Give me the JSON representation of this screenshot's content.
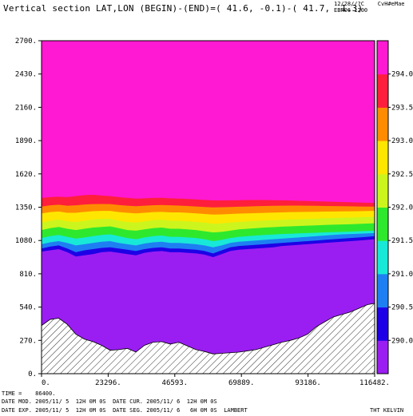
{
  "header": {
    "title": "Vertical section LAT,LON (BEGIN)-(END)=( 41.6, -0.1)-( 41.7,  1.3)",
    "stamp_line1": "12/28//?C",
    "stamp_line2": "EBR06 1200",
    "stamp_user": "CvH#eMae"
  },
  "footer": {
    "time_label": "TIME =",
    "time_value": "86400.",
    "date_mod": "DATE MOD. 2005/11/ 5  12H 0M 0S",
    "date_cur": "DATE CUR. 2005/11/ 6  12H 0M 0S",
    "date_exp": "DATE EXP. 2005/11/ 5  12H 0M 0S",
    "date_seg": "DATE SEG. 2005/11/ 6   6H 0M 0S",
    "projection": "LAMBERT",
    "field_label": "THT KELVIN"
  },
  "chart_data": {
    "type": "heatmap",
    "title": "Vertical section LAT,LON (BEGIN)-(END)=( 41.6, -0.1)-( 41.7,  1.3)",
    "xlim": [
      0,
      116482
    ],
    "ylim": [
      0,
      2700
    ],
    "x_ticks": [
      "0.",
      "23296.",
      "46593.",
      "69889.",
      "93186.",
      "116482."
    ],
    "x_tick_values": [
      0,
      23296,
      46593,
      69889,
      93186,
      116482
    ],
    "y_ticks": [
      "0.",
      "270.",
      "540.",
      "810.",
      "1080.",
      "1350.",
      "1620.",
      "1890.",
      "2160.",
      "2430.",
      "2700."
    ],
    "y_tick_values": [
      0,
      270,
      540,
      810,
      1080,
      1350,
      1620,
      1890,
      2160,
      2430,
      2700
    ],
    "colorbar": {
      "labels": [
        "290.0",
        "290.5",
        "291.0",
        "291.5",
        "292.0",
        "292.5",
        "293.0",
        "293.5",
        "294.0"
      ],
      "values": [
        290.0,
        290.5,
        291.0,
        291.5,
        292.0,
        292.5,
        293.0,
        293.5,
        294.0
      ],
      "colors": [
        "#9a1ef2",
        "#1e00e6",
        "#1e7ff2",
        "#18e8d8",
        "#2ee82e",
        "#ccf51e",
        "#ffe600",
        "#ff8c00",
        "#ff1e3c",
        "#ff19d2"
      ]
    },
    "x_profile": [
      0,
      3000,
      6000,
      9000,
      12000,
      15000,
      18000,
      21000,
      24000,
      27000,
      30000,
      33000,
      36000,
      39000,
      42000,
      45000,
      48000,
      51000,
      54000,
      57000,
      60000,
      63000,
      66000,
      69000,
      72000,
      75000,
      78000,
      81000,
      84000,
      87000,
      90000,
      93000,
      96000,
      99000,
      102000,
      105000,
      108000,
      111000,
      114000,
      116482
    ],
    "terrain": [
      390,
      440,
      450,
      400,
      320,
      280,
      260,
      230,
      190,
      195,
      205,
      175,
      230,
      255,
      260,
      240,
      255,
      225,
      195,
      180,
      160,
      165,
      170,
      175,
      185,
      195,
      215,
      235,
      255,
      270,
      290,
      320,
      380,
      420,
      460,
      480,
      500,
      530,
      560,
      570
    ],
    "contours": [
      {
        "value": 290.0,
        "heights": [
          990,
          1000,
          1010,
          985,
          950,
          960,
          970,
          985,
          990,
          980,
          970,
          960,
          980,
          990,
          995,
          985,
          985,
          980,
          975,
          965,
          945,
          970,
          995,
          1005,
          1010,
          1015,
          1020,
          1025,
          1035,
          1040,
          1045,
          1050,
          1055,
          1060,
          1065,
          1070,
          1075,
          1080,
          1085,
          1090
        ]
      },
      {
        "value": 290.5,
        "heights": [
          1015,
          1030,
          1040,
          1015,
          985,
          1000,
          1010,
          1020,
          1025,
          1015,
          1005,
          995,
          1010,
          1020,
          1025,
          1015,
          1015,
          1010,
          1005,
          995,
          975,
          1000,
          1025,
          1035,
          1040,
          1045,
          1050,
          1055,
          1060,
          1065,
          1070,
          1075,
          1080,
          1085,
          1090,
          1095,
          1100,
          1105,
          1110,
          1115
        ]
      },
      {
        "value": 291.0,
        "heights": [
          1050,
          1065,
          1075,
          1060,
          1040,
          1050,
          1060,
          1070,
          1075,
          1060,
          1050,
          1040,
          1055,
          1065,
          1070,
          1060,
          1060,
          1055,
          1050,
          1040,
          1025,
          1040,
          1060,
          1070,
          1075,
          1080,
          1085,
          1090,
          1095,
          1100,
          1105,
          1110,
          1115,
          1120,
          1125,
          1130,
          1132,
          1135,
          1138,
          1140
        ]
      },
      {
        "value": 291.5,
        "heights": [
          1100,
          1115,
          1125,
          1110,
          1095,
          1105,
          1115,
          1125,
          1130,
          1115,
          1100,
          1090,
          1105,
          1115,
          1120,
          1110,
          1110,
          1105,
          1100,
          1090,
          1075,
          1085,
          1100,
          1110,
          1115,
          1120,
          1125,
          1128,
          1132,
          1135,
          1138,
          1140,
          1143,
          1146,
          1148,
          1150,
          1152,
          1155,
          1157,
          1160
        ]
      },
      {
        "value": 292.0,
        "heights": [
          1165,
          1180,
          1190,
          1175,
          1165,
          1175,
          1185,
          1190,
          1195,
          1180,
          1165,
          1160,
          1170,
          1180,
          1185,
          1175,
          1175,
          1170,
          1165,
          1155,
          1145,
          1150,
          1160,
          1170,
          1175,
          1180,
          1185,
          1188,
          1192,
          1195,
          1198,
          1200,
          1203,
          1206,
          1208,
          1210,
          1212,
          1215,
          1217,
          1220
        ]
      },
      {
        "value": 292.5,
        "heights": [
          1225,
          1240,
          1250,
          1235,
          1230,
          1240,
          1250,
          1255,
          1255,
          1240,
          1230,
          1225,
          1235,
          1245,
          1248,
          1240,
          1240,
          1235,
          1230,
          1225,
          1215,
          1220,
          1225,
          1230,
          1235,
          1238,
          1242,
          1245,
          1248,
          1250,
          1252,
          1255,
          1257,
          1260,
          1262,
          1264,
          1266,
          1268,
          1270,
          1272
        ]
      },
      {
        "value": 293.0,
        "heights": [
          1300,
          1310,
          1315,
          1305,
          1305,
          1312,
          1318,
          1320,
          1320,
          1310,
          1305,
          1300,
          1305,
          1310,
          1312,
          1308,
          1308,
          1305,
          1300,
          1295,
          1290,
          1292,
          1295,
          1298,
          1300,
          1302,
          1304,
          1306,
          1308,
          1310,
          1311,
          1312,
          1313,
          1314,
          1315,
          1316,
          1317,
          1318,
          1319,
          1320
        ]
      },
      {
        "value": 293.5,
        "heights": [
          1355,
          1365,
          1370,
          1362,
          1365,
          1372,
          1375,
          1376,
          1375,
          1368,
          1362,
          1358,
          1362,
          1366,
          1368,
          1365,
          1363,
          1360,
          1356,
          1352,
          1348,
          1350,
          1352,
          1354,
          1356,
          1358,
          1360,
          1361,
          1362,
          1363,
          1363,
          1362,
          1361,
          1360,
          1359,
          1358,
          1357,
          1356,
          1355,
          1355
        ]
      },
      {
        "value": 294.0,
        "heights": [
          1425,
          1432,
          1435,
          1432,
          1440,
          1448,
          1450,
          1445,
          1440,
          1432,
          1425,
          1420,
          1422,
          1425,
          1426,
          1422,
          1420,
          1417,
          1413,
          1409,
          1405,
          1405,
          1406,
          1407,
          1408,
          1408,
          1408,
          1407,
          1406,
          1404,
          1402,
          1400,
          1398,
          1396,
          1394,
          1392,
          1390,
          1388,
          1386,
          1385
        ]
      }
    ]
  }
}
